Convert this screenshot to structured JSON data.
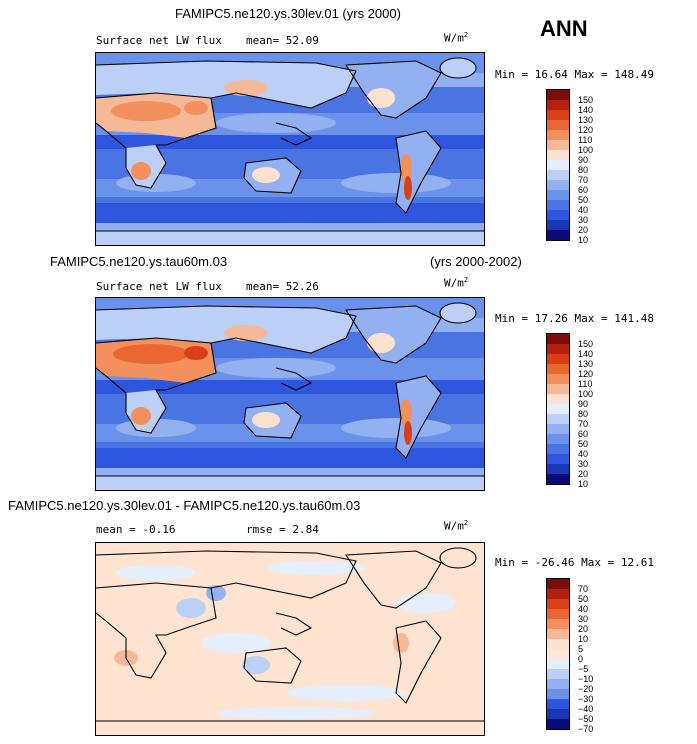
{
  "season": "ANN",
  "units": "W/m",
  "units_sup": "2",
  "panels": [
    {
      "case_title": "FAMIPC5.ne120.ys.30lev.01 (yrs 2000)",
      "field_label": "Surface net LW flux",
      "stat_text": "mean=  52.09",
      "minmax_text": "Min =  16.64 Max = 148.49",
      "colorbar_levels": [
        "150",
        "140",
        "130",
        "120",
        "110",
        "100",
        "90",
        "80",
        "70",
        "60",
        "50",
        "40",
        "30",
        "20",
        "10"
      ]
    },
    {
      "case_title": "FAMIPC5.ne120.ys.tau60m.03",
      "years_text": "(yrs 2000-2002)",
      "field_label": "Surface net LW flux",
      "stat_text": "mean=  52.26",
      "minmax_text": "Min =  17.26 Max = 141.48",
      "colorbar_levels": [
        "150",
        "140",
        "130",
        "120",
        "110",
        "100",
        "90",
        "80",
        "70",
        "60",
        "50",
        "40",
        "30",
        "20",
        "10"
      ]
    },
    {
      "case_title": "FAMIPC5.ne120.ys.30lev.01 - FAMIPC5.ne120.ys.tau60m.03",
      "mean_text": "mean =  -0.16",
      "rmse_text": "rmse =   2.84",
      "minmax_text": "Min = -26.46 Max =  12.61",
      "colorbar_levels": [
        "70",
        "50",
        "40",
        "30",
        "20",
        "10",
        "5",
        "0",
        "−5",
        "−10",
        "−20",
        "−30",
        "−40",
        "−50",
        "−70"
      ]
    }
  ],
  "colors": {
    "abs_scale": [
      "#7d0c0c",
      "#b3200f",
      "#d9401a",
      "#ea6633",
      "#f3905e",
      "#f6b998",
      "#fbe1cf",
      "#e4eefc",
      "#bcd0f7",
      "#93b1f0",
      "#6a92ea",
      "#4a74e2",
      "#2e55dd",
      "#1a37b5",
      "#0a0a7a"
    ],
    "diff_scale": [
      "#7d0c0c",
      "#b3200f",
      "#d9401a",
      "#ea6633",
      "#f3905e",
      "#f6b998",
      "#fbe1cf",
      "#fde8d8",
      "#e4eefc",
      "#bcd0f7",
      "#93b1f0",
      "#6a92ea",
      "#2e55dd",
      "#1a37b5",
      "#0a0a7a"
    ],
    "ocean_abs": "#4a74e2",
    "ocean_diff": "#fde3d0",
    "coast": "#000000"
  }
}
